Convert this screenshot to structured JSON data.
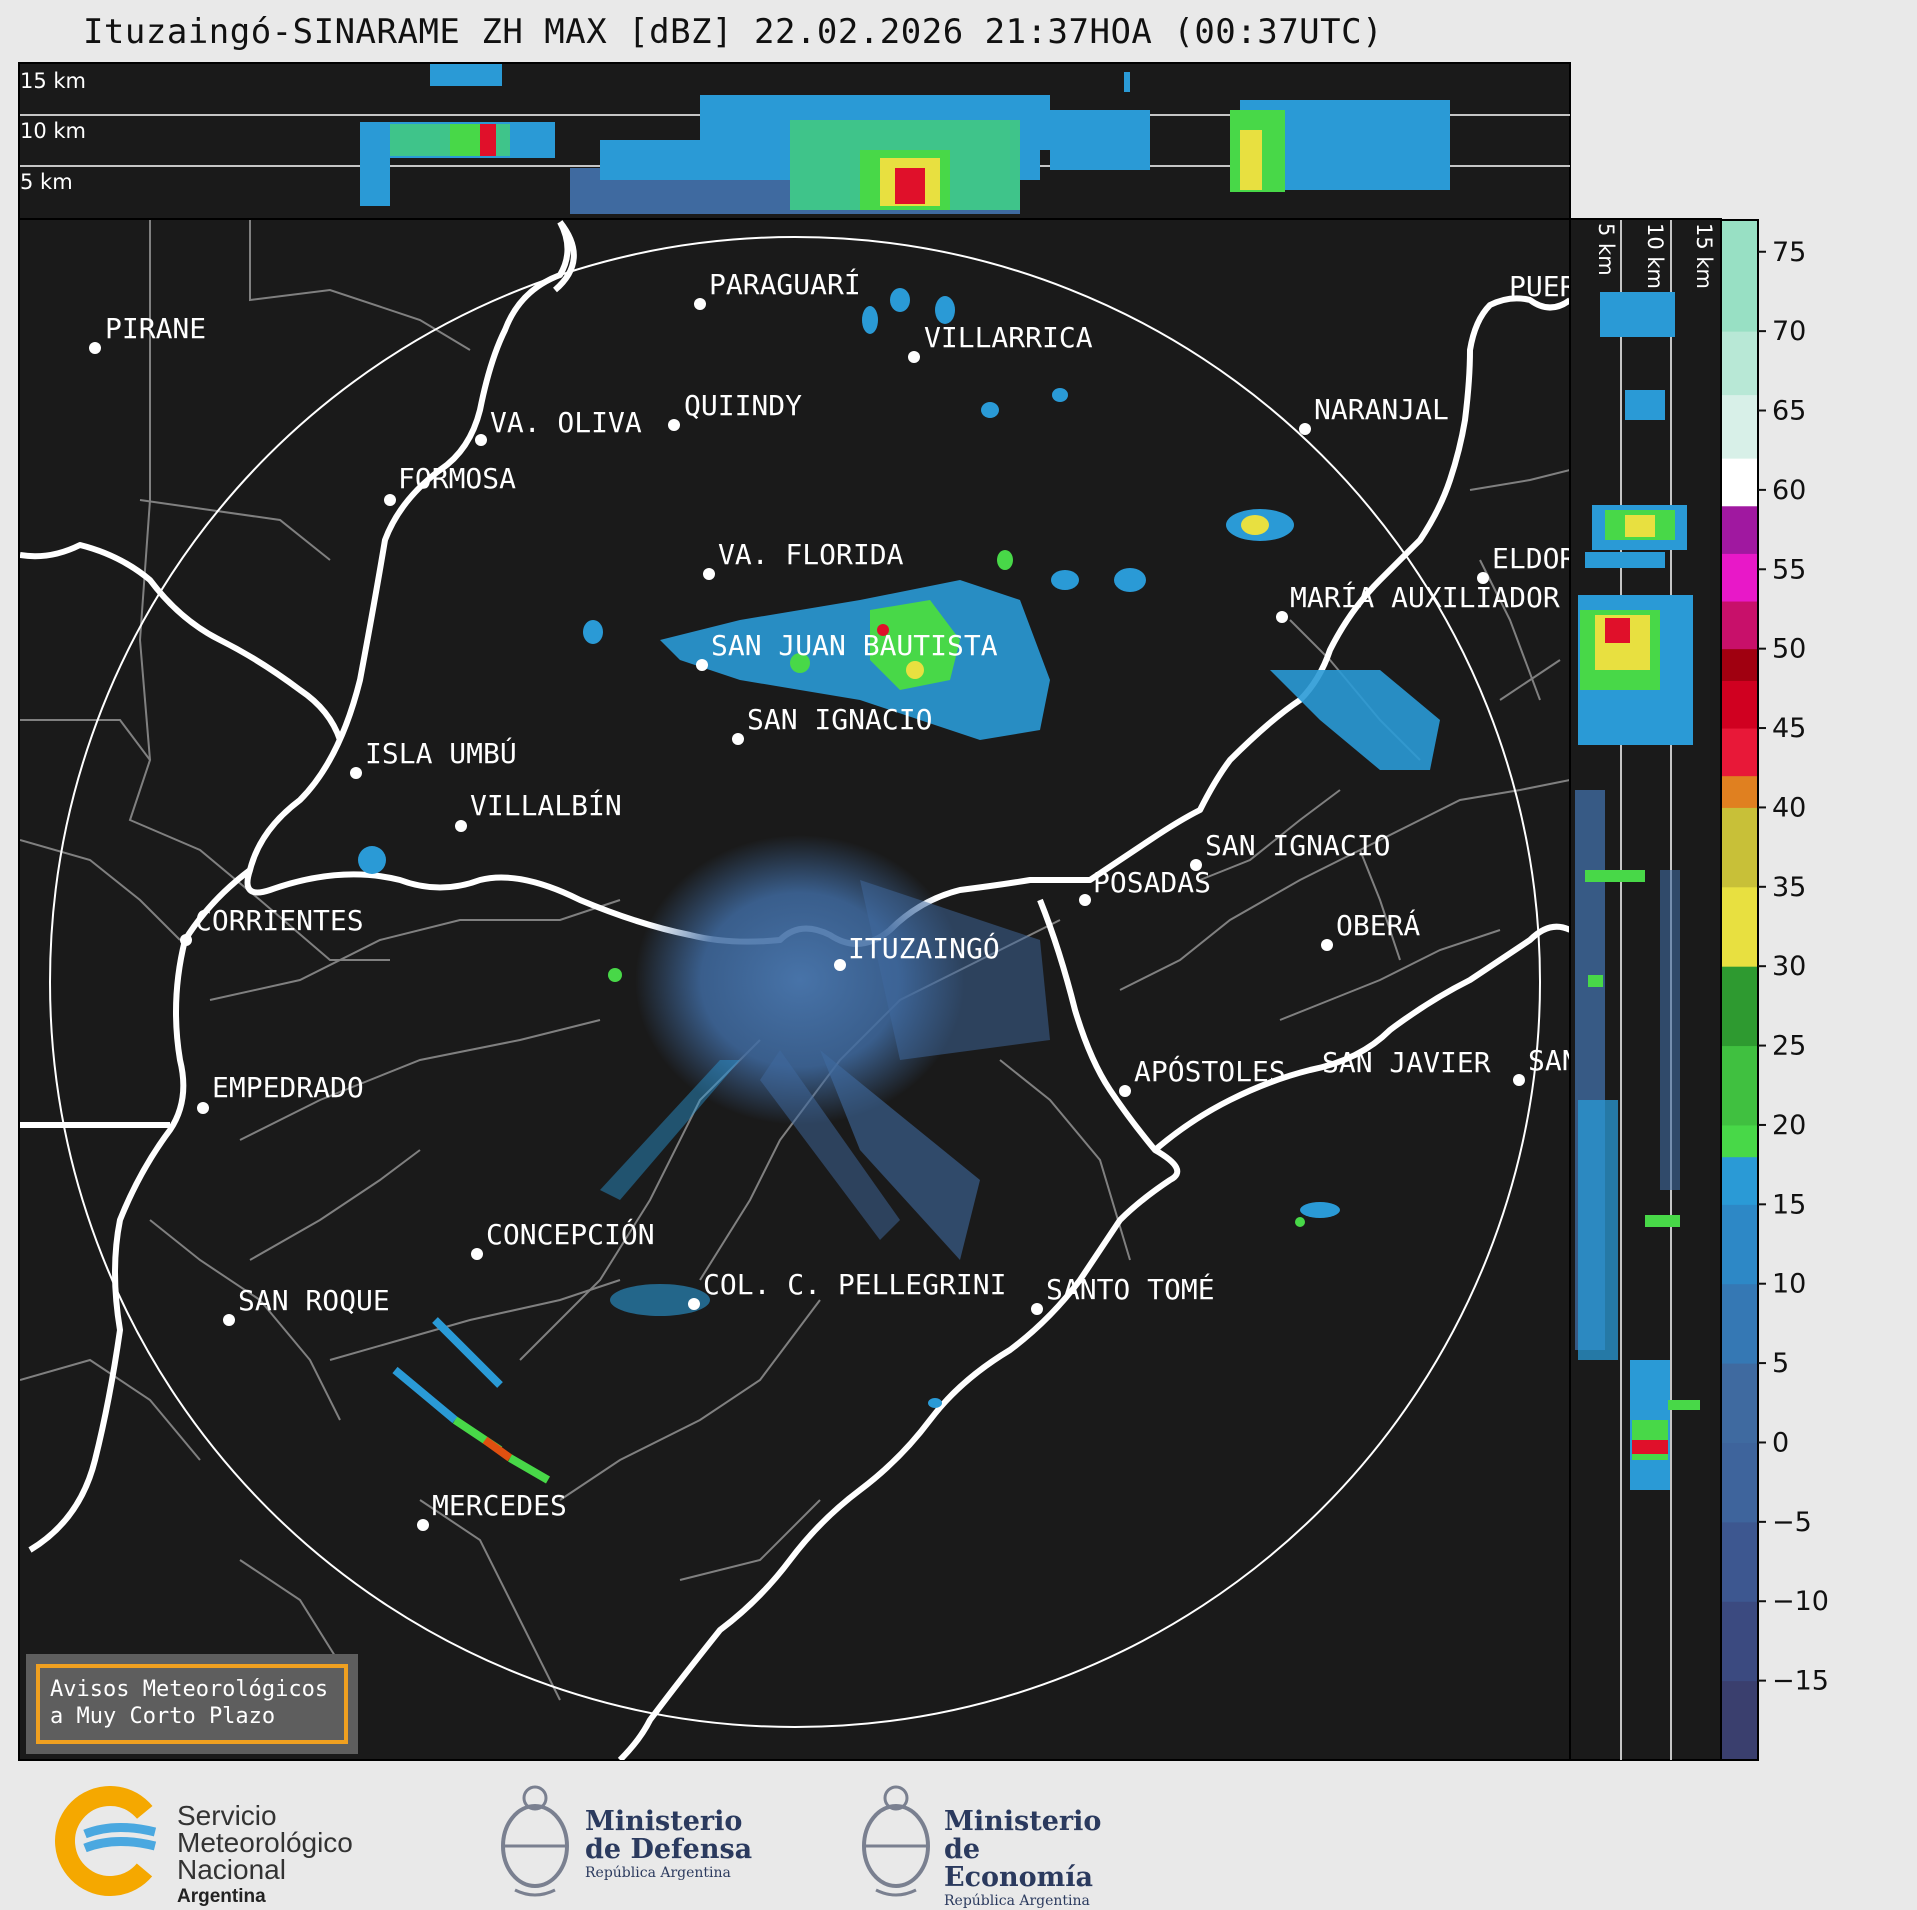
{
  "title": "Ituzaingó-SINARAME ZH MAX [dBZ] 22.02.2026 21:37HOA (00:37UTC)",
  "altitude_labels": {
    "top": [
      "15 km",
      "10 km",
      "5 km"
    ],
    "side": [
      "5 km",
      "10 km",
      "15 km"
    ]
  },
  "cities": [
    {
      "name": "PIRANE"
    },
    {
      "name": "PARAGUARÍ"
    },
    {
      "name": "VILLARRICA"
    },
    {
      "name": "QUIINDY"
    },
    {
      "name": "VA. OLIVA"
    },
    {
      "name": "FORMOSA"
    },
    {
      "name": "NARANJAL"
    },
    {
      "name": "PUER"
    },
    {
      "name": "VA. FLORIDA"
    },
    {
      "name": "ELDOR"
    },
    {
      "name": "MARÍA AUXILIADOR"
    },
    {
      "name": "SAN JUAN BAUTISTA"
    },
    {
      "name": "SAN IGNACIO"
    },
    {
      "name": "ISLA UMBÚ"
    },
    {
      "name": "VILLALBÍN"
    },
    {
      "name": "SAN IGNACIO"
    },
    {
      "name": "POSADAS"
    },
    {
      "name": "CORRIENTES"
    },
    {
      "name": "ITUZAINGÓ"
    },
    {
      "name": "OBERÁ"
    },
    {
      "name": "APÓSTOLES"
    },
    {
      "name": "SAN JAVIER"
    },
    {
      "name": "SAN"
    },
    {
      "name": "EMPEDRADO"
    },
    {
      "name": "CONCEPCIÓN"
    },
    {
      "name": "COL. C. PELLEGRINI"
    },
    {
      "name": "SANTO TOMÉ"
    },
    {
      "name": "SAN ROQUE"
    },
    {
      "name": "MERCEDES"
    }
  ],
  "colorbar": {
    "ticks": [
      "75",
      "70",
      "65",
      "60",
      "55",
      "50",
      "45",
      "40",
      "35",
      "30",
      "25",
      "20",
      "15",
      "10",
      "5",
      "0",
      "−5",
      "−10",
      "−15"
    ],
    "range": [
      -20,
      77
    ]
  },
  "warning_box": {
    "line1": "Avisos Meteorológicos",
    "line2": "a Muy Corto Plazo"
  },
  "logos": {
    "smn": {
      "line1": "Servicio",
      "line2": "Meteorológico",
      "line3": "Nacional",
      "line4": "Argentina"
    },
    "defensa": {
      "line1": "Ministerio",
      "line2": "de Defensa",
      "line3": "República Argentina"
    },
    "economia": {
      "line1": "Ministerio",
      "line2": "de Economía",
      "line3": "República Argentina"
    }
  },
  "colors": {
    "panel_bg": "#1a1a1a",
    "river": "#ffffff",
    "border": "#808080",
    "echo_low": "#3f6aa0",
    "echo_mid": "#2a9ad6",
    "echo_green": "#48d848",
    "echo_yellow": "#e8e040",
    "echo_red": "#e0102a",
    "warn_border": "#f0a020"
  }
}
